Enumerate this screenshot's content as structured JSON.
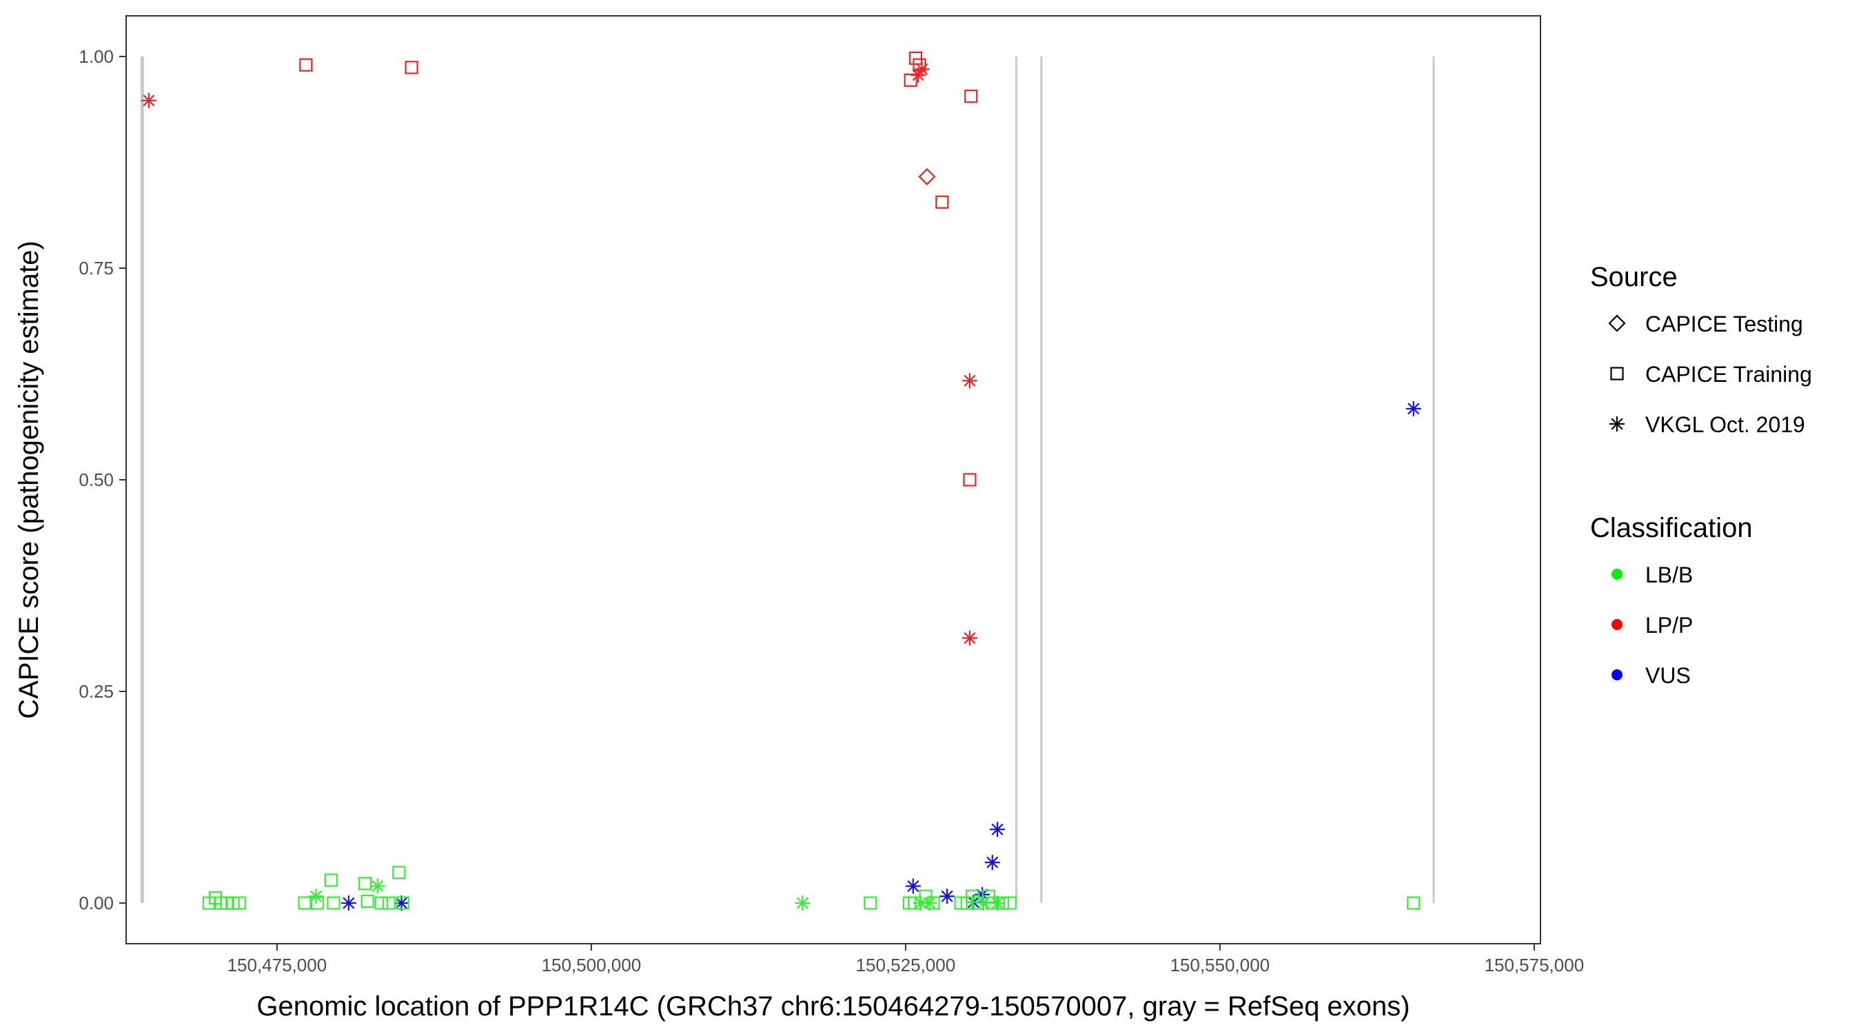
{
  "chart_data": {
    "type": "scatter",
    "title": "",
    "xlabel": "Genomic location of PPP1R14C (GRCh37 chr6:150464279-150570007, gray = RefSeq exons)",
    "ylabel": "CAPICE score (pathogenicity estimate)",
    "xlim": [
      150463000,
      150575500
    ],
    "ylim": [
      -0.048,
      1.048
    ],
    "x_ticks": [
      150475000,
      150500000,
      150525000,
      150550000,
      150575000
    ],
    "x_tick_labels": [
      "150,475,000",
      "150,500,000",
      "150,525,000",
      "150,550,000",
      "150,575,000"
    ],
    "y_ticks": [
      0,
      0.25,
      0.5,
      0.75,
      1.0
    ],
    "y_tick_labels": [
      "0.00",
      "0.25",
      "0.50",
      "0.75",
      "1.00"
    ],
    "grid": false,
    "legend_position": "right",
    "exons": [
      {
        "x": 150464279,
        "y_top": 1.0
      },
      {
        "x": 150533800,
        "y_top": 1.0
      },
      {
        "x": 150535800,
        "y_top": 1.0
      },
      {
        "x": 150567000,
        "y_top": 1.0
      }
    ],
    "legend": {
      "source_title": "Source",
      "source_items": [
        {
          "shape": "diamond",
          "label": "CAPICE Testing"
        },
        {
          "shape": "square",
          "label": "CAPICE Training"
        },
        {
          "shape": "asterisk",
          "label": "VKGL Oct. 2019"
        }
      ],
      "class_title": "Classification",
      "class_items": [
        {
          "cls": "LB/B",
          "label": "LB/B",
          "color": "#00ee00"
        },
        {
          "cls": "LP/P",
          "label": "LP/P",
          "color": "#ff0000"
        },
        {
          "cls": "VUS",
          "label": "VUS",
          "color": "#0000ff"
        }
      ]
    },
    "colors": {
      "LB/B": "#33ee33",
      "LP/P": "#ee2222",
      "VUS": "#1111ee"
    },
    "points": [
      {
        "x": 150464800,
        "y": 0.948,
        "shape": "asterisk",
        "cls": "LP/P"
      },
      {
        "x": 150477300,
        "y": 0.99,
        "shape": "square",
        "cls": "LP/P"
      },
      {
        "x": 150485700,
        "y": 0.987,
        "shape": "square",
        "cls": "LP/P"
      },
      {
        "x": 150525400,
        "y": 0.972,
        "shape": "square",
        "cls": "LP/P"
      },
      {
        "x": 150525800,
        "y": 0.998,
        "shape": "square",
        "cls": "LP/P"
      },
      {
        "x": 150526100,
        "y": 0.99,
        "shape": "square",
        "cls": "LP/P"
      },
      {
        "x": 150526300,
        "y": 0.985,
        "shape": "asterisk",
        "cls": "LP/P"
      },
      {
        "x": 150526000,
        "y": 0.978,
        "shape": "asterisk",
        "cls": "LP/P"
      },
      {
        "x": 150530200,
        "y": 0.953,
        "shape": "square",
        "cls": "LP/P"
      },
      {
        "x": 150526700,
        "y": 0.858,
        "shape": "diamond",
        "cls": "LP/P"
      },
      {
        "x": 150527900,
        "y": 0.828,
        "shape": "square",
        "cls": "LP/P"
      },
      {
        "x": 150530100,
        "y": 0.617,
        "shape": "asterisk",
        "cls": "LP/P"
      },
      {
        "x": 150530100,
        "y": 0.5,
        "shape": "square",
        "cls": "LP/P"
      },
      {
        "x": 150530100,
        "y": 0.313,
        "shape": "asterisk",
        "cls": "LP/P"
      },
      {
        "x": 150565400,
        "y": 0.584,
        "shape": "asterisk",
        "cls": "VUS"
      },
      {
        "x": 150532300,
        "y": 0.087,
        "shape": "asterisk",
        "cls": "VUS"
      },
      {
        "x": 150531900,
        "y": 0.048,
        "shape": "asterisk",
        "cls": "VUS"
      },
      {
        "x": 150525600,
        "y": 0.02,
        "shape": "asterisk",
        "cls": "VUS"
      },
      {
        "x": 150528300,
        "y": 0.008,
        "shape": "asterisk",
        "cls": "VUS"
      },
      {
        "x": 150531100,
        "y": 0.01,
        "shape": "asterisk",
        "cls": "VUS"
      },
      {
        "x": 150530400,
        "y": 0.001,
        "shape": "asterisk",
        "cls": "VUS"
      },
      {
        "x": 150480700,
        "y": 0.0,
        "shape": "asterisk",
        "cls": "VUS"
      },
      {
        "x": 150484900,
        "y": 0.0,
        "shape": "asterisk",
        "cls": "VUS"
      },
      {
        "x": 150469600,
        "y": 0.0,
        "shape": "square",
        "cls": "LB/B"
      },
      {
        "x": 150470100,
        "y": 0.006,
        "shape": "square",
        "cls": "LB/B"
      },
      {
        "x": 150470500,
        "y": 0.0,
        "shape": "square",
        "cls": "LB/B"
      },
      {
        "x": 150471000,
        "y": 0.0,
        "shape": "square",
        "cls": "LB/B"
      },
      {
        "x": 150471500,
        "y": 0.0,
        "shape": "square",
        "cls": "LB/B"
      },
      {
        "x": 150472000,
        "y": 0.0,
        "shape": "square",
        "cls": "LB/B"
      },
      {
        "x": 150477200,
        "y": 0.0,
        "shape": "square",
        "cls": "LB/B"
      },
      {
        "x": 150478100,
        "y": 0.008,
        "shape": "asterisk",
        "cls": "LB/B"
      },
      {
        "x": 150478200,
        "y": 0.0,
        "shape": "square",
        "cls": "LB/B"
      },
      {
        "x": 150479300,
        "y": 0.027,
        "shape": "square",
        "cls": "LB/B"
      },
      {
        "x": 150479500,
        "y": 0.0,
        "shape": "square",
        "cls": "LB/B"
      },
      {
        "x": 150482000,
        "y": 0.023,
        "shape": "square",
        "cls": "LB/B"
      },
      {
        "x": 150482200,
        "y": 0.002,
        "shape": "square",
        "cls": "LB/B"
      },
      {
        "x": 150483000,
        "y": 0.02,
        "shape": "asterisk",
        "cls": "LB/B"
      },
      {
        "x": 150483300,
        "y": 0.0,
        "shape": "square",
        "cls": "LB/B"
      },
      {
        "x": 150483900,
        "y": 0.0,
        "shape": "square",
        "cls": "LB/B"
      },
      {
        "x": 150484700,
        "y": 0.036,
        "shape": "square",
        "cls": "LB/B"
      },
      {
        "x": 150485000,
        "y": 0.0,
        "shape": "square",
        "cls": "LB/B"
      },
      {
        "x": 150516800,
        "y": 0.0,
        "shape": "asterisk",
        "cls": "LB/B"
      },
      {
        "x": 150522200,
        "y": 0.0,
        "shape": "square",
        "cls": "LB/B"
      },
      {
        "x": 150525300,
        "y": 0.0,
        "shape": "square",
        "cls": "LB/B"
      },
      {
        "x": 150525700,
        "y": 0.0,
        "shape": "square",
        "cls": "LB/B"
      },
      {
        "x": 150526200,
        "y": 0.0,
        "shape": "asterisk",
        "cls": "LB/B"
      },
      {
        "x": 150526600,
        "y": 0.008,
        "shape": "square",
        "cls": "LB/B"
      },
      {
        "x": 150526900,
        "y": 0.0,
        "shape": "asterisk",
        "cls": "LB/B"
      },
      {
        "x": 150527200,
        "y": 0.0,
        "shape": "square",
        "cls": "LB/B"
      },
      {
        "x": 150529400,
        "y": 0.0,
        "shape": "square",
        "cls": "LB/B"
      },
      {
        "x": 150529900,
        "y": 0.0,
        "shape": "square",
        "cls": "LB/B"
      },
      {
        "x": 150530300,
        "y": 0.008,
        "shape": "square",
        "cls": "LB/B"
      },
      {
        "x": 150530700,
        "y": 0.0,
        "shape": "square",
        "cls": "LB/B"
      },
      {
        "x": 150531200,
        "y": 0.0,
        "shape": "asterisk",
        "cls": "LB/B"
      },
      {
        "x": 150531600,
        "y": 0.008,
        "shape": "square",
        "cls": "LB/B"
      },
      {
        "x": 150531900,
        "y": 0.0,
        "shape": "square",
        "cls": "LB/B"
      },
      {
        "x": 150532300,
        "y": 0.0,
        "shape": "asterisk",
        "cls": "LB/B"
      },
      {
        "x": 150532700,
        "y": 0.0,
        "shape": "square",
        "cls": "LB/B"
      },
      {
        "x": 150533300,
        "y": 0.0,
        "shape": "square",
        "cls": "LB/B"
      },
      {
        "x": 150565400,
        "y": 0.0,
        "shape": "square",
        "cls": "LB/B"
      }
    ]
  }
}
